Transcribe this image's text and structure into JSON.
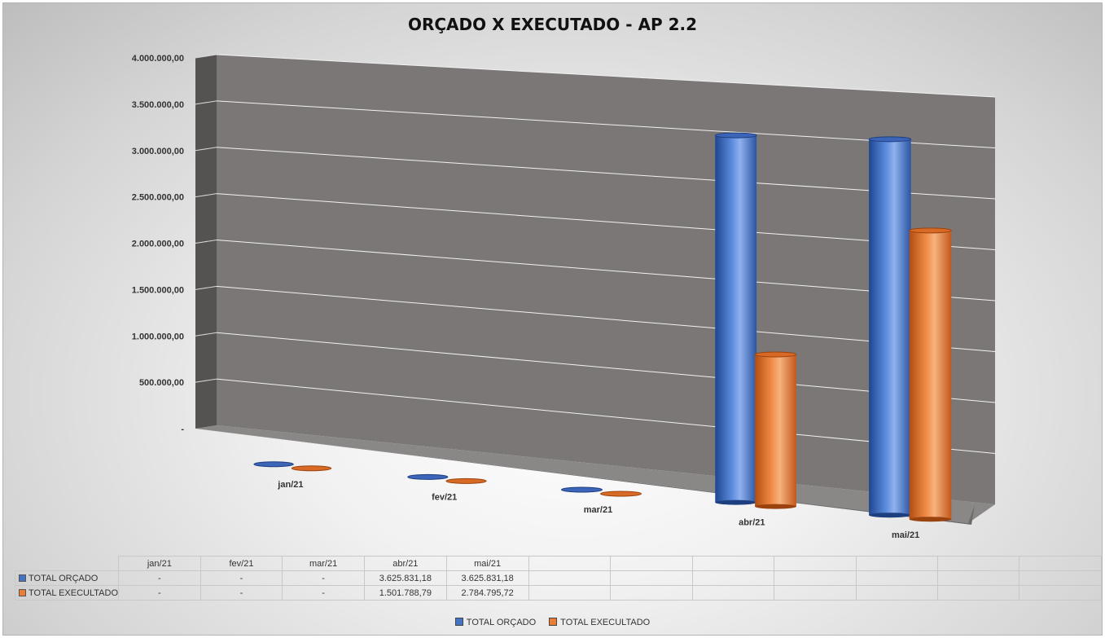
{
  "chart_data": {
    "type": "bar",
    "title": "ORÇADO X EXECUTADO - AP 2.2",
    "categories": [
      "jan/21",
      "fev/21",
      "mar/21",
      "abr/21",
      "mai/21"
    ],
    "series": [
      {
        "name": "TOTAL ORÇADO",
        "color": "#4472c4",
        "values": [
          0,
          0,
          0,
          3625831.18,
          3625831.18
        ],
        "labels": [
          "-",
          "-",
          "-",
          "3.625.831,18",
          "3.625.831,18"
        ]
      },
      {
        "name": "TOTAL EXECULTADO",
        "color": "#ed7d31",
        "values": [
          0,
          0,
          0,
          1501788.79,
          2784795.72
        ],
        "labels": [
          "-",
          "-",
          "-",
          "1.501.788,79",
          "2.784.795,72"
        ]
      }
    ],
    "legend_labels": [
      "TOTAL ORÇADO",
      "TOTAL EXECULTADO"
    ],
    "ylim": [
      0,
      4000000
    ],
    "yticks": [
      0,
      500000,
      1000000,
      1500000,
      2000000,
      2500000,
      3000000,
      3500000,
      4000000
    ],
    "ytick_labels": [
      "-",
      "500.000,00",
      "1.000.000,00",
      "1.500.000,00",
      "2.000.000,00",
      "2.500.000,00",
      "3.000.000,00",
      "3.500.000,00",
      "4.000.000,00"
    ],
    "grid": true,
    "style": "3d-cylinder",
    "legend_position": "bottom",
    "data_table": true
  }
}
